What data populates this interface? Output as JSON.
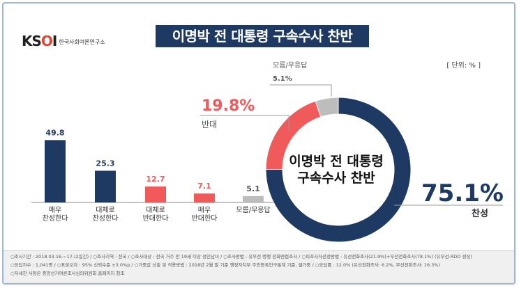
{
  "header": {
    "logo_mark": "KSOI",
    "logo_org": "한국사회여론연구소",
    "title": "이명박 전 대통령 구속수사 찬반",
    "unit": "[ 단위: % ]"
  },
  "colors": {
    "navy": "#1e3a63",
    "red": "#f15a5a",
    "gray": "#bdbdbd"
  },
  "chart_data": [
    {
      "type": "bar",
      "categories": [
        "매우\n찬성한다",
        "대체로\n찬성한다",
        "대체로\n반대한다",
        "매우\n반대한다",
        "모름/무응답"
      ],
      "values": [
        49.8,
        25.3,
        12.7,
        7.1,
        5.1
      ],
      "value_labels": [
        "49.8",
        "25.3",
        "12.7",
        "7.1",
        "5.1"
      ],
      "bar_colors": [
        "#1e3a63",
        "#1e3a63",
        "#f15a5a",
        "#f15a5a",
        "#bdbdbd"
      ]
    },
    {
      "type": "pie",
      "donut": true,
      "center_label": [
        "이명박 전 대통령",
        "구속수사 찬반"
      ],
      "slices": [
        {
          "label": "찬성",
          "value": 75.1,
          "value_label": "75.1%",
          "color": "#1e3a63"
        },
        {
          "label": "반대",
          "value": 19.8,
          "value_label": "19.8%",
          "color": "#f15a5a"
        },
        {
          "label": "모름/무응답",
          "value": 5.1,
          "value_label": "5.1%",
          "color": "#bdbdbd"
        }
      ]
    }
  ],
  "footer": {
    "line1": "○조사기간 : 2018.03.16.~17.(2일간) / ○조사지역 : 전국 / ○조사대상 : 전국 거주 만 19세 이상 성인남녀 / ○조사방법 : 유무선 병행 전화면접조사 / ○피조사자선정방법 : 유선전화조사(21.9%)+무선전화조사(78.1%) (유무선-RDD 생성)",
    "line2": "○응답자수 : 1,041명 / ○표본오차 : 95% 신뢰수준 ±3.0%p / ○가중값 산출 및 적용방법 : 2018년 2월 말 기준 행정자치부 주민등록인구통계 기준, 셀가중 / ○응답률 : 12.0% (유선전화조사: 6.2%, 무선전화조사: 16.3%)",
    "line3": "○자세한 사항은 중앙선거여론조사심의위원회 홈페이지 참조"
  }
}
